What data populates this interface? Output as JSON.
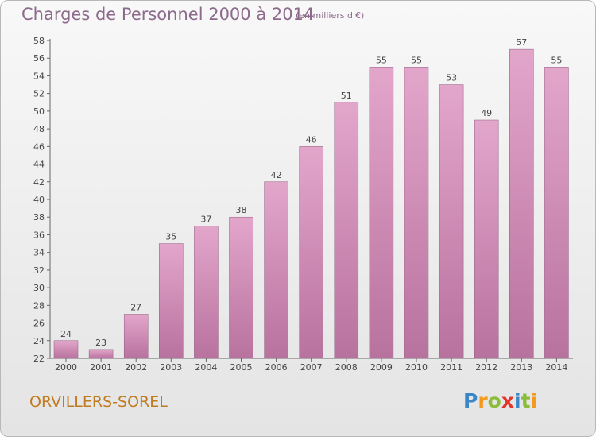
{
  "title": "Charges de Personnel 2000 à 2014",
  "subtitle": "(en milliers d'€)",
  "town": "ORVILLERS-SOREL",
  "logo": {
    "letters": [
      "P",
      "r",
      "o",
      "x",
      "i",
      "t",
      "i"
    ],
    "colors": [
      "#3b86c6",
      "#f39a1e",
      "#8bbd3a",
      "#e5352b",
      "#3b86c6",
      "#8bbd3a",
      "#f39a1e"
    ]
  },
  "colors": {
    "bar_top": "#e3a6cb",
    "bar_bottom": "#b8729e",
    "text": "#8d6a8b",
    "town": "#c07a20"
  },
  "chart_data": {
    "type": "bar",
    "categories": [
      "2000",
      "2001",
      "2002",
      "2003",
      "2004",
      "2005",
      "2006",
      "2007",
      "2008",
      "2009",
      "2010",
      "2011",
      "2012",
      "2013",
      "2014"
    ],
    "values": [
      24,
      23,
      27,
      35,
      37,
      38,
      42,
      46,
      51,
      55,
      55,
      53,
      49,
      57,
      55
    ],
    "ylim": [
      22,
      58
    ],
    "yticks": [
      22,
      24,
      26,
      28,
      30,
      32,
      34,
      36,
      38,
      40,
      42,
      44,
      46,
      48,
      50,
      52,
      54,
      56,
      58
    ],
    "grid": false,
    "legend": "none"
  }
}
